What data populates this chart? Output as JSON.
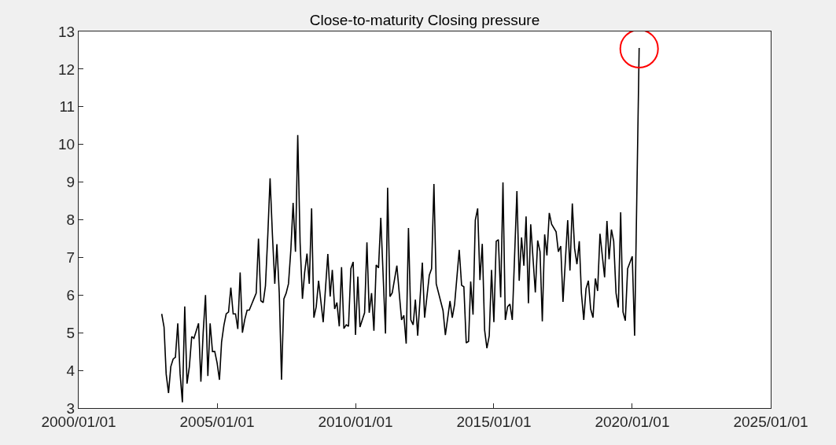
{
  "chart_data": {
    "type": "line",
    "title": "Close-to-maturity Closing pressure",
    "x": [
      "2003-01",
      "2003-02",
      "2003-03",
      "2003-04",
      "2003-05",
      "2003-06",
      "2003-07",
      "2003-08",
      "2003-09",
      "2003-10",
      "2003-11",
      "2003-12",
      "2004-01",
      "2004-02",
      "2004-03",
      "2004-04",
      "2004-05",
      "2004-06",
      "2004-07",
      "2004-08",
      "2004-09",
      "2004-10",
      "2004-11",
      "2004-12",
      "2005-01",
      "2005-02",
      "2005-03",
      "2005-04",
      "2005-05",
      "2005-06",
      "2005-07",
      "2005-08",
      "2005-09",
      "2005-10",
      "2005-11",
      "2005-12",
      "2006-01",
      "2006-02",
      "2006-03",
      "2006-04",
      "2006-05",
      "2006-06",
      "2006-07",
      "2006-08",
      "2006-09",
      "2006-10",
      "2006-11",
      "2006-12",
      "2007-01",
      "2007-02",
      "2007-03",
      "2007-04",
      "2007-05",
      "2007-06",
      "2007-07",
      "2007-08",
      "2007-09",
      "2007-10",
      "2007-11",
      "2007-12",
      "2008-01",
      "2008-02",
      "2008-03",
      "2008-04",
      "2008-05",
      "2008-06",
      "2008-07",
      "2008-08",
      "2008-09",
      "2008-11",
      "2009-01",
      "2009-02",
      "2009-03",
      "2009-04",
      "2009-05",
      "2009-06",
      "2009-07",
      "2009-08",
      "2009-09",
      "2009-10",
      "2009-11",
      "2009-12",
      "2010-01",
      "2010-02",
      "2010-03",
      "2010-05",
      "2010-06",
      "2010-07",
      "2010-08",
      "2010-09",
      "2010-10",
      "2010-11",
      "2010-12",
      "2011-02",
      "2011-03",
      "2011-04",
      "2011-05",
      "2011-07",
      "2011-09",
      "2011-10",
      "2011-11",
      "2011-12",
      "2012-01",
      "2012-02",
      "2012-03",
      "2012-04",
      "2012-06",
      "2012-07",
      "2012-09",
      "2012-10",
      "2012-11",
      "2012-12",
      "2013-03",
      "2013-04",
      "2013-06",
      "2013-07",
      "2013-08",
      "2013-10",
      "2013-11",
      "2013-12",
      "2014-01",
      "2014-02",
      "2014-03",
      "2014-04",
      "2014-05",
      "2014-06",
      "2014-07",
      "2014-08",
      "2014-09",
      "2014-10",
      "2014-11",
      "2014-12",
      "2015-01",
      "2015-02",
      "2015-03",
      "2015-04",
      "2015-05",
      "2015-06",
      "2015-07",
      "2015-08",
      "2015-09",
      "2015-11",
      "2015-12",
      "2016-01",
      "2016-02",
      "2016-03",
      "2016-04",
      "2016-05",
      "2016-07",
      "2016-08",
      "2016-09",
      "2016-10",
      "2016-11",
      "2016-12",
      "2017-01",
      "2017-02",
      "2017-04",
      "2017-05",
      "2017-06",
      "2017-07",
      "2017-09",
      "2017-10",
      "2017-11",
      "2017-12",
      "2018-01",
      "2018-02",
      "2018-03",
      "2018-04",
      "2018-05",
      "2018-06",
      "2018-07",
      "2018-08",
      "2018-09",
      "2018-10",
      "2018-11",
      "2019-01",
      "2019-02",
      "2019-03",
      "2019-04",
      "2019-05",
      "2019-06",
      "2019-07",
      "2019-08",
      "2019-09",
      "2019-10",
      "2019-11",
      "2020-01",
      "2020-02",
      "2020-04"
    ],
    "series": [
      {
        "color": "#000000",
        "values": [
          5.5,
          5.15,
          3.9,
          3.4,
          4.1,
          4.3,
          4.35,
          5.25,
          3.9,
          3.15,
          5.7,
          3.65,
          4.1,
          4.9,
          4.85,
          5.05,
          5.25,
          3.7,
          5.0,
          6.0,
          3.85,
          5.25,
          4.5,
          4.5,
          4.2,
          3.75,
          4.75,
          5.2,
          5.5,
          5.55,
          6.2,
          5.5,
          5.5,
          5.1,
          6.6,
          5.0,
          5.35,
          5.6,
          5.6,
          5.75,
          5.9,
          6.05,
          7.5,
          5.85,
          5.8,
          6.25,
          7.6,
          9.1,
          7.6,
          6.3,
          7.35,
          6.05,
          3.75,
          5.9,
          6.05,
          6.3,
          7.2,
          8.45,
          7.15,
          10.25,
          7.4,
          5.9,
          6.6,
          7.1,
          6.3,
          8.3,
          5.4,
          5.69,
          6.38,
          5.28,
          7.09,
          5.96,
          6.67,
          5.63,
          5.8,
          5.17,
          6.74,
          5.11,
          5.21,
          5.17,
          6.7,
          6.88,
          4.94,
          6.49,
          5.15,
          5.53,
          7.4,
          5.53,
          6.05,
          5.05,
          6.8,
          6.72,
          8.05,
          4.98,
          8.85,
          5.96,
          6.06,
          6.78,
          5.34,
          5.46,
          4.71,
          7.78,
          5.34,
          5.21,
          5.88,
          4.92,
          6.86,
          5.4,
          6.53,
          6.7,
          8.95,
          6.3,
          5.59,
          4.94,
          5.84,
          5.4,
          5.76,
          7.2,
          6.26,
          6.22,
          4.73,
          4.77,
          6.36,
          5.48,
          7.99,
          8.3,
          6.4,
          7.36,
          5.07,
          4.59,
          4.92,
          6.67,
          5.28,
          7.43,
          7.47,
          5.94,
          8.99,
          5.34,
          5.69,
          5.76,
          5.34,
          8.76,
          6.38,
          7.53,
          6.78,
          8.09,
          5.78,
          7.88,
          6.07,
          7.45,
          7.15,
          5.3,
          7.61,
          7.05,
          8.18,
          7.88,
          7.68,
          7.15,
          7.3,
          5.82,
          7.99,
          6.65,
          8.43,
          7.24,
          6.82,
          7.43,
          6.05,
          5.34,
          6.17,
          6.38,
          5.63,
          5.4,
          6.44,
          6.11,
          7.63,
          6.47,
          7.97,
          6.95,
          7.74,
          7.43,
          6.05,
          5.67,
          8.2,
          5.55,
          5.32,
          6.7,
          7.03,
          4.92,
          12.56
        ]
      }
    ],
    "xlim": [
      "2000-01-01",
      "2025-01-01"
    ],
    "xticks": [
      {
        "value": "2000-01-01",
        "label": "2000/01/01"
      },
      {
        "value": "2005-01-01",
        "label": "2005/01/01"
      },
      {
        "value": "2010-01-01",
        "label": "2010/01/01"
      },
      {
        "value": "2015-01-01",
        "label": "2015/01/01"
      },
      {
        "value": "2020-01-01",
        "label": "2020/01/01"
      },
      {
        "value": "2025-01-01",
        "label": "2025/01/01"
      }
    ],
    "ylim": [
      3,
      13
    ],
    "yticks": [
      3,
      4,
      5,
      6,
      7,
      8,
      9,
      10,
      11,
      12,
      13
    ],
    "marker": "none",
    "line_style": "solid"
  }
}
